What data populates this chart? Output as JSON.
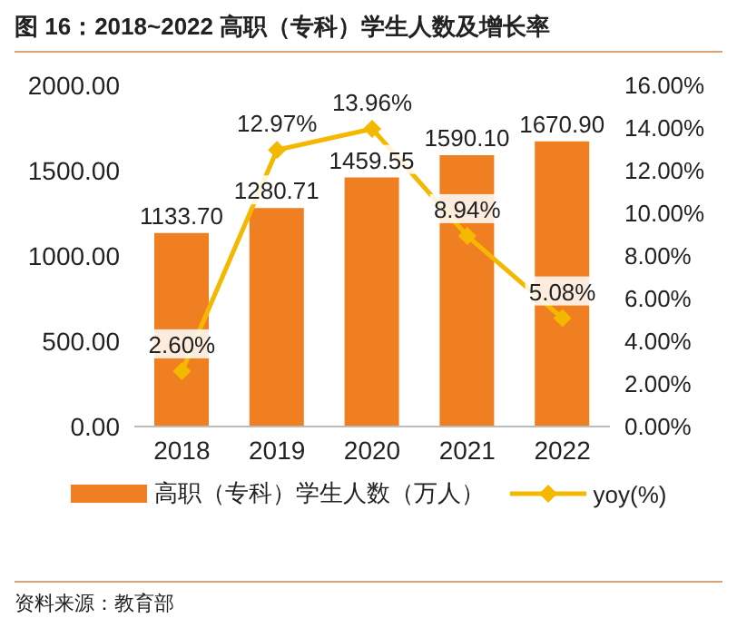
{
  "chart_data": {
    "type": "bar",
    "title": "图 16：2018~2022 高职（专科）学生人数及增长率",
    "categories": [
      "2018",
      "2019",
      "2020",
      "2021",
      "2022"
    ],
    "series": [
      {
        "name": "高职（专科）学生人数（万人）",
        "color": "#f07f22",
        "values": [
          1133.7,
          1280.71,
          1459.55,
          1590.1,
          1670.9
        ],
        "value_labels": [
          "1133.70",
          "1280.71",
          "1459.55",
          "1590.10",
          "1670.90"
        ]
      },
      {
        "name": "yoy(%)",
        "type": "line",
        "axis": "y2",
        "color": "#f5b800",
        "marker": "diamond",
        "values": [
          2.6,
          12.97,
          13.96,
          8.94,
          5.08
        ],
        "value_labels": [
          "2.60%",
          "12.97%",
          "13.96%",
          "8.94%",
          "5.08%"
        ]
      }
    ],
    "ylim": [
      0,
      2000
    ],
    "yticks": [
      {
        "value": 0,
        "label": "0.00"
      },
      {
        "value": 500,
        "label": "500.00"
      },
      {
        "value": 1000,
        "label": "1000.00"
      },
      {
        "value": 1500,
        "label": "1500.00"
      },
      {
        "value": 2000,
        "label": "2000.00"
      }
    ],
    "y2lim": [
      0,
      16
    ],
    "y2ticks": [
      {
        "value": 0,
        "label": "0.00%"
      },
      {
        "value": 2,
        "label": "2.00%"
      },
      {
        "value": 4,
        "label": "4.00%"
      },
      {
        "value": 6,
        "label": "6.00%"
      },
      {
        "value": 8,
        "label": "8.00%"
      },
      {
        "value": 10,
        "label": "10.00%"
      },
      {
        "value": 12,
        "label": "12.00%"
      },
      {
        "value": 14,
        "label": "14.00%"
      },
      {
        "value": 16,
        "label": "16.00%"
      }
    ],
    "legend": "bottom",
    "annotations": [
      "资料来源：教育部"
    ]
  }
}
